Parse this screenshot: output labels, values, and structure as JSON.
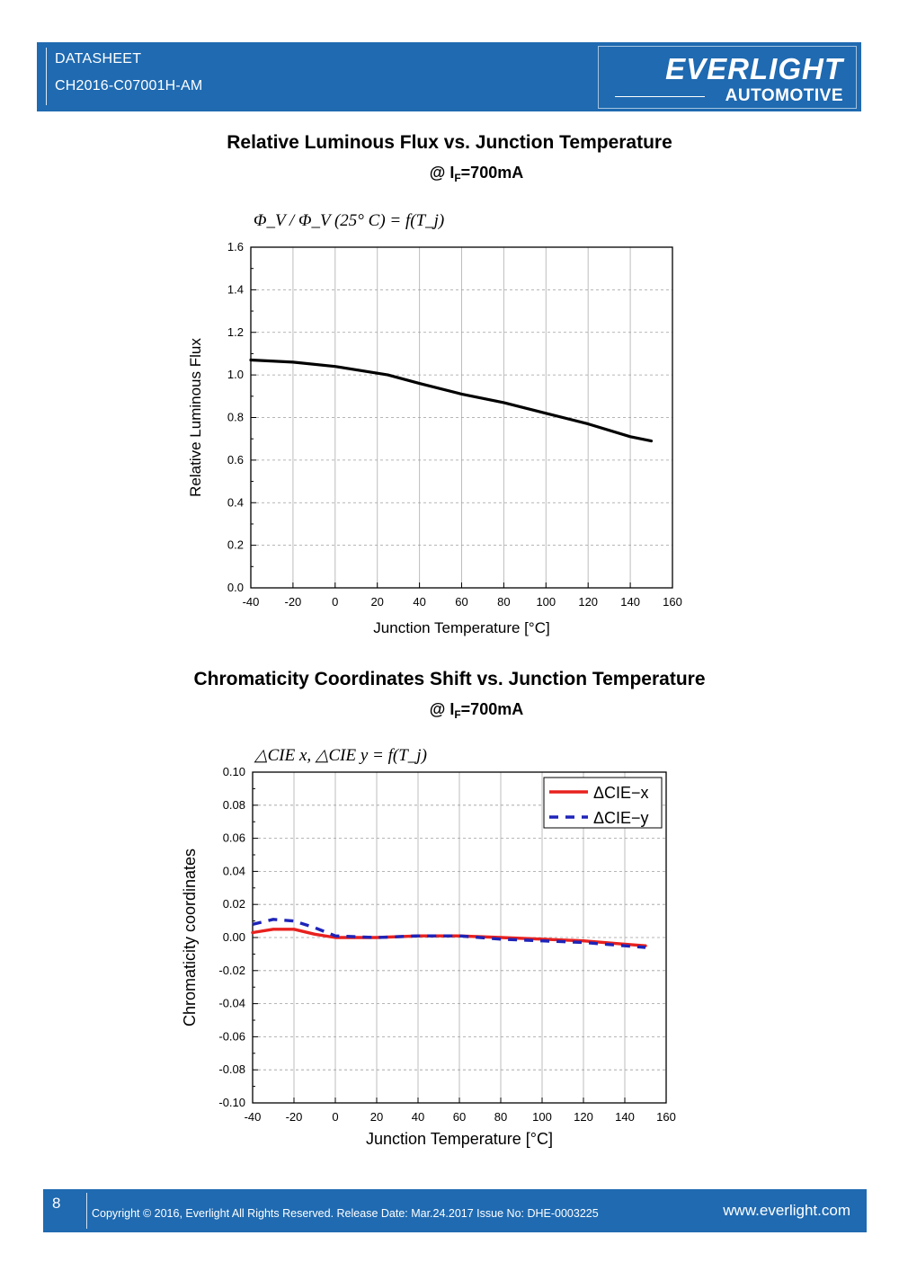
{
  "header": {
    "line1": "DATASHEET",
    "line2": "CH2016-C07001H-AM",
    "brand": "EVERLIGHT",
    "brand_sub": "AUTOMOTIVE",
    "color": "#1f6ab1"
  },
  "footer": {
    "page": "8",
    "copyright": "Copyright © 2016, Everlight All Rights Reserved. Release Date: Mar.24.2017   Issue No: DHE-0003225",
    "website": "www.everlight.com"
  },
  "charts_text": [
    {
      "title": "Relative Luminous Flux vs. Junction Temperature",
      "condition_prefix": "@ I",
      "condition_sub": "F",
      "condition_suffix": "=700mA",
      "formula": "Φ_V / Φ_V (25° C) = f(T_j)"
    },
    {
      "title": "Chromaticity Coordinates Shift vs. Junction Temperature",
      "condition_prefix": "@ I",
      "condition_sub": "F",
      "condition_suffix": "=700mA",
      "formula": "△CIE x, △CIE y = f(T_j)"
    }
  ],
  "chart_data": [
    {
      "type": "line",
      "xlabel": "Junction Temperature [°C]",
      "ylabel": "Relative Luminous Flux",
      "xlim": [
        -40,
        160
      ],
      "ylim": [
        0.0,
        1.6
      ],
      "xticks": [
        "-40",
        "-20",
        "0",
        "20",
        "40",
        "60",
        "80",
        "100",
        "120",
        "140",
        "160"
      ],
      "yticks": [
        "0.0",
        "0.2",
        "0.4",
        "0.6",
        "0.8",
        "1.0",
        "1.2",
        "1.4",
        "1.6"
      ],
      "grid": true,
      "series": [
        {
          "color": "#000000",
          "dashed": false,
          "x": [
            -40,
            -20,
            0,
            25,
            40,
            60,
            80,
            100,
            120,
            140,
            150
          ],
          "y": [
            1.07,
            1.06,
            1.04,
            1.0,
            0.96,
            0.91,
            0.87,
            0.82,
            0.77,
            0.71,
            0.69
          ]
        }
      ]
    },
    {
      "type": "line",
      "xlabel": "Junction Temperature [°C]",
      "ylabel": "Chromaticity coordinates",
      "xlim": [
        -40,
        160
      ],
      "ylim": [
        -0.1,
        0.1
      ],
      "xticks": [
        "-40",
        "-20",
        "0",
        "20",
        "40",
        "60",
        "80",
        "100",
        "120",
        "140",
        "160"
      ],
      "yticks": [
        "-0.10",
        "-0.08",
        "-0.06",
        "-0.04",
        "-0.02",
        "0.00",
        "0.02",
        "0.04",
        "0.06",
        "0.08",
        "0.10"
      ],
      "grid": true,
      "legend_position": "top-right",
      "series": [
        {
          "name": "ΔCIE−x",
          "color": "#e8211e",
          "dashed": false,
          "x": [
            -40,
            -30,
            -20,
            -10,
            0,
            20,
            40,
            60,
            80,
            100,
            120,
            140,
            150
          ],
          "y": [
            0.003,
            0.005,
            0.005,
            0.002,
            0.0,
            0.0,
            0.001,
            0.001,
            0.0,
            -0.001,
            -0.002,
            -0.004,
            -0.005
          ]
        },
        {
          "name": "ΔCIE−y",
          "color": "#1e24b8",
          "dashed": true,
          "x": [
            -40,
            -30,
            -20,
            -10,
            0,
            20,
            40,
            60,
            80,
            100,
            120,
            140,
            150
          ],
          "y": [
            0.008,
            0.011,
            0.01,
            0.006,
            0.001,
            0.0,
            0.001,
            0.001,
            -0.001,
            -0.002,
            -0.003,
            -0.005,
            -0.006
          ]
        }
      ]
    }
  ]
}
